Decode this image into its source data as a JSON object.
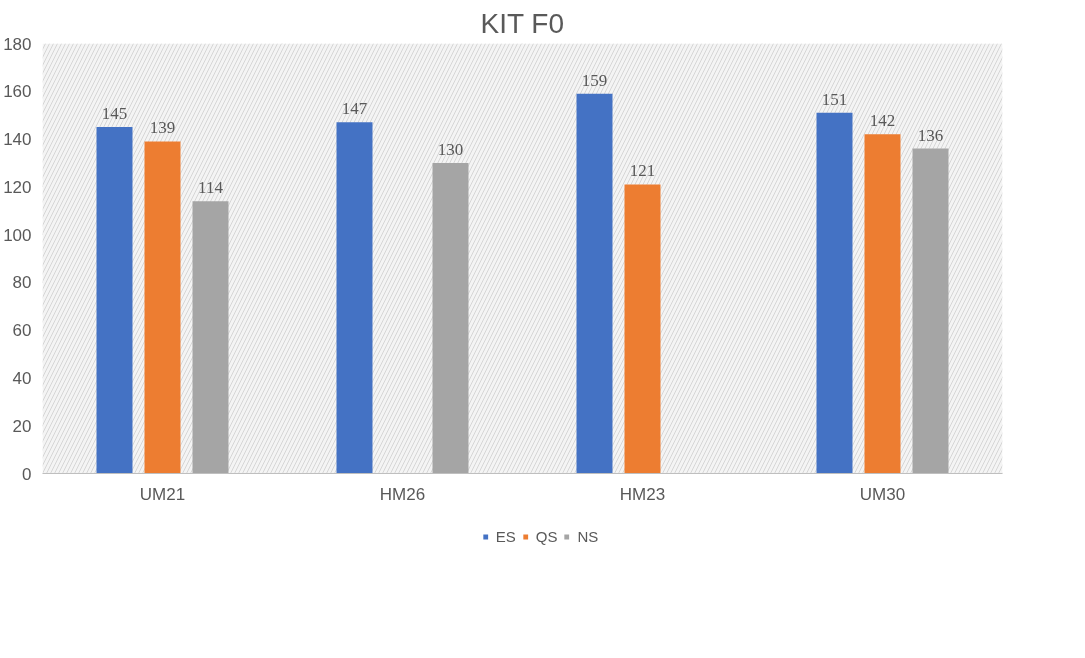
{
  "chart_data": {
    "type": "bar",
    "title": "KIT F0",
    "categories": [
      "UM21",
      "HM26",
      "HM23",
      "UM30"
    ],
    "series": [
      {
        "name": "ES",
        "color": "#4472c4",
        "values": [
          145,
          147,
          159,
          151
        ]
      },
      {
        "name": "QS",
        "color": "#ed7d31",
        "values": [
          139,
          null,
          121,
          142
        ]
      },
      {
        "name": "NS",
        "color": "#a5a5a5",
        "values": [
          114,
          130,
          null,
          136
        ]
      }
    ],
    "ylim": [
      0,
      180
    ],
    "yticks": [
      0,
      20,
      40,
      60,
      80,
      100,
      120,
      140,
      160,
      180
    ],
    "grid": true,
    "legend": "bottom",
    "data_labels": true
  }
}
